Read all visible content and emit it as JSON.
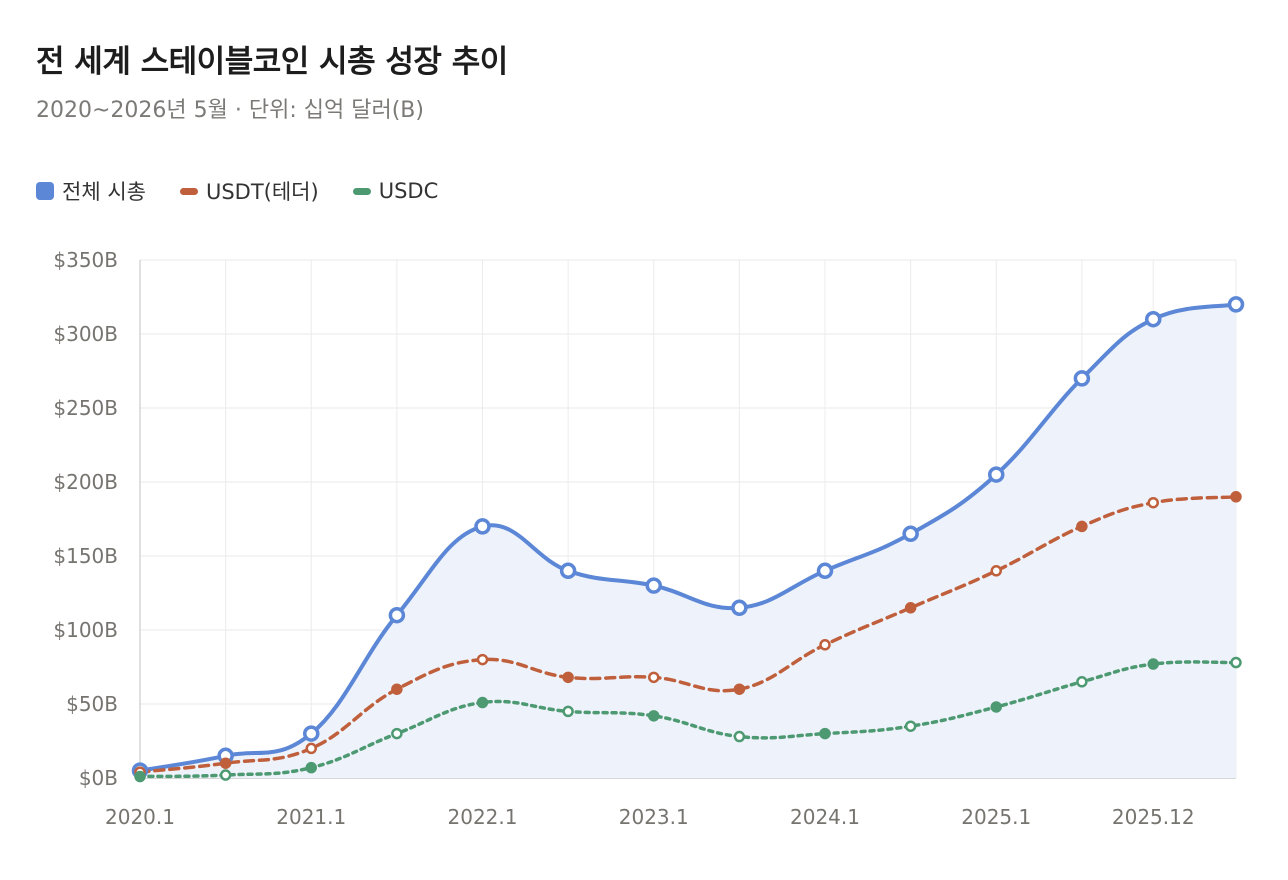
{
  "title": "전 세계 스테이블코인 시총 성장 추이",
  "subtitle": "2020~2026년 5월 · 단위: 십억 달러(B)",
  "chart_data": {
    "type": "line",
    "x": [
      2020.0,
      2020.5,
      2021.0,
      2021.5,
      2022.0,
      2022.5,
      2023.0,
      2023.5,
      2024.0,
      2024.5,
      2025.0,
      2025.5,
      2025.9167,
      2026.4
    ],
    "x_tick_values": [
      2020.0,
      2021.0,
      2022.0,
      2023.0,
      2024.0,
      2025.0,
      2025.9167
    ],
    "x_tick_labels": [
      "2020.1",
      "2021.1",
      "2022.1",
      "2023.1",
      "2024.1",
      "2025.1",
      "2025.12"
    ],
    "y_ticks": [
      "$0B",
      "$50B",
      "$100B",
      "$150B",
      "$200B",
      "$250B",
      "$300B",
      "$350B"
    ],
    "ylim": [
      0,
      350
    ],
    "grid": true,
    "legend_position": "top-left",
    "series": [
      {
        "name": "전체 시총",
        "color": "#5b87d6",
        "style": "solid",
        "fill": "#eef2fb",
        "values": [
          5,
          15,
          30,
          110,
          170,
          140,
          130,
          115,
          140,
          165,
          205,
          270,
          310,
          320
        ]
      },
      {
        "name": "USDT(테더)",
        "color": "#bf5f3b",
        "style": "dashed",
        "values": [
          4,
          10,
          20,
          60,
          80,
          68,
          68,
          60,
          90,
          115,
          140,
          170,
          186,
          190
        ]
      },
      {
        "name": "USDC",
        "color": "#4d9a72",
        "style": "dotted",
        "values": [
          1,
          2,
          7,
          30,
          51,
          45,
          42,
          28,
          30,
          35,
          48,
          65,
          77,
          78
        ]
      }
    ]
  }
}
